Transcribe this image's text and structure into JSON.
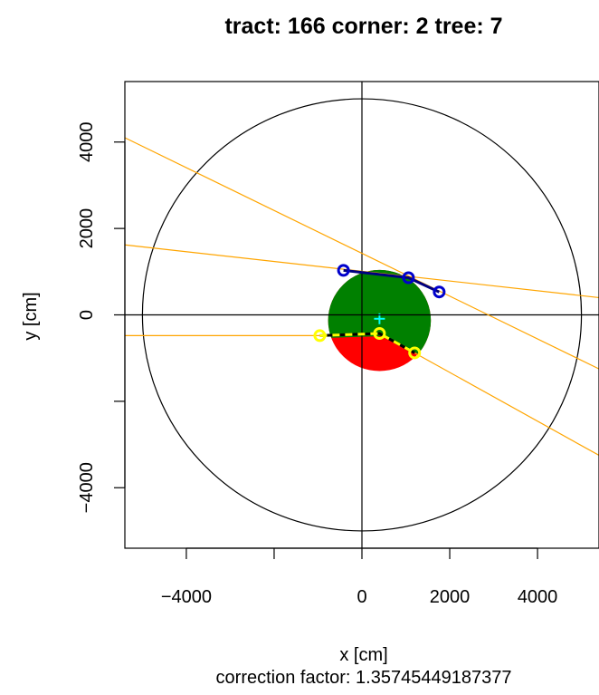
{
  "chart_data": {
    "type": "scatter",
    "title": "tract: 166 corner: 2 tree: 7",
    "xlabel": "x [cm]",
    "ylabel": "y [cm]",
    "subtitle": "correction factor: 1.35745449187377",
    "xlim": [
      -5400,
      5400
    ],
    "ylim": [
      -5400,
      5400
    ],
    "xticks": [
      -4000,
      -2000,
      0,
      2000,
      4000
    ],
    "xtick_labels": [
      "−4000",
      "",
      "0",
      "2000",
      "4000"
    ],
    "yticks": [
      -4000,
      -2000,
      0,
      2000,
      4000
    ],
    "ytick_labels": [
      "−4000",
      "",
      "0",
      "2000",
      "4000"
    ],
    "reference_lines": [
      {
        "kind": "vertical",
        "x": 0,
        "color": "#000000"
      },
      {
        "kind": "horizontal",
        "y": 0,
        "color": "#000000"
      }
    ],
    "plot_circle": {
      "center": [
        0,
        0
      ],
      "radius": 5000,
      "color": "#000000"
    },
    "tree": {
      "center": [
        400,
        -130
      ],
      "radius": 1170,
      "fill": "#008000",
      "cut_fill": "#ff0000",
      "marker": {
        "x": 400,
        "y": -90,
        "symbol": "+",
        "color": "#00ffff"
      }
    },
    "edge_lines": [
      {
        "p1": [
          -5400,
          4100
        ],
        "p2": [
          5400,
          -1250
        ],
        "color": "#ffa500"
      },
      {
        "p1": [
          -5400,
          1620
        ],
        "p2": [
          5400,
          400
        ],
        "color": "#ffa500"
      },
      {
        "p1": [
          -5400,
          -480
        ],
        "p2": [
          -960,
          -480
        ],
        "color": "#ffa500"
      },
      {
        "p1": [
          1200,
          -880
        ],
        "p2": [
          5400,
          -3250
        ],
        "color": "#ffa500"
      }
    ],
    "series": [
      {
        "color": "#0000cc",
        "line_color": "#000080",
        "points": [
          [
            -420,
            1030
          ],
          [
            1060,
            860
          ],
          [
            1760,
            530
          ]
        ]
      },
      {
        "color": "#ffff00",
        "line_color": "#000000",
        "dashed_color": "#ffff00",
        "points": [
          [
            -960,
            -480
          ],
          [
            400,
            -430
          ],
          [
            1200,
            -880
          ]
        ]
      }
    ]
  }
}
